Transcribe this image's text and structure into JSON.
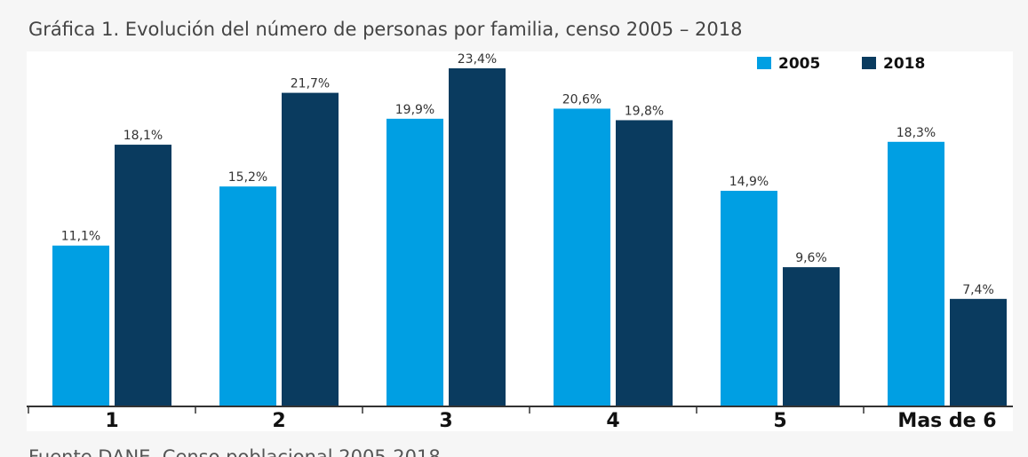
{
  "chart_data": {
    "type": "bar",
    "title": "Gráfica 1. Evolución del número de personas por familia, censo 2005 – 2018",
    "source": "Fuente DANE, Censo poblacional 2005-2018",
    "categories": [
      "1",
      "2",
      "3",
      "4",
      "5",
      "Mas de 6"
    ],
    "series": [
      {
        "name": "2005",
        "color": "#009fe3",
        "values": [
          11.1,
          15.2,
          19.9,
          20.6,
          14.9,
          18.3
        ],
        "value_labels": [
          "11,1%",
          "15,2%",
          "19,9%",
          "20,6%",
          "14,9%",
          "18,3%"
        ]
      },
      {
        "name": "2018",
        "color": "#0a3b5f",
        "values": [
          18.1,
          21.7,
          23.4,
          19.8,
          9.6,
          7.4
        ],
        "value_labels": [
          "18,1%",
          "21,7%",
          "23,4%",
          "19,8%",
          "9,6%",
          "7,4%"
        ]
      }
    ]
  }
}
